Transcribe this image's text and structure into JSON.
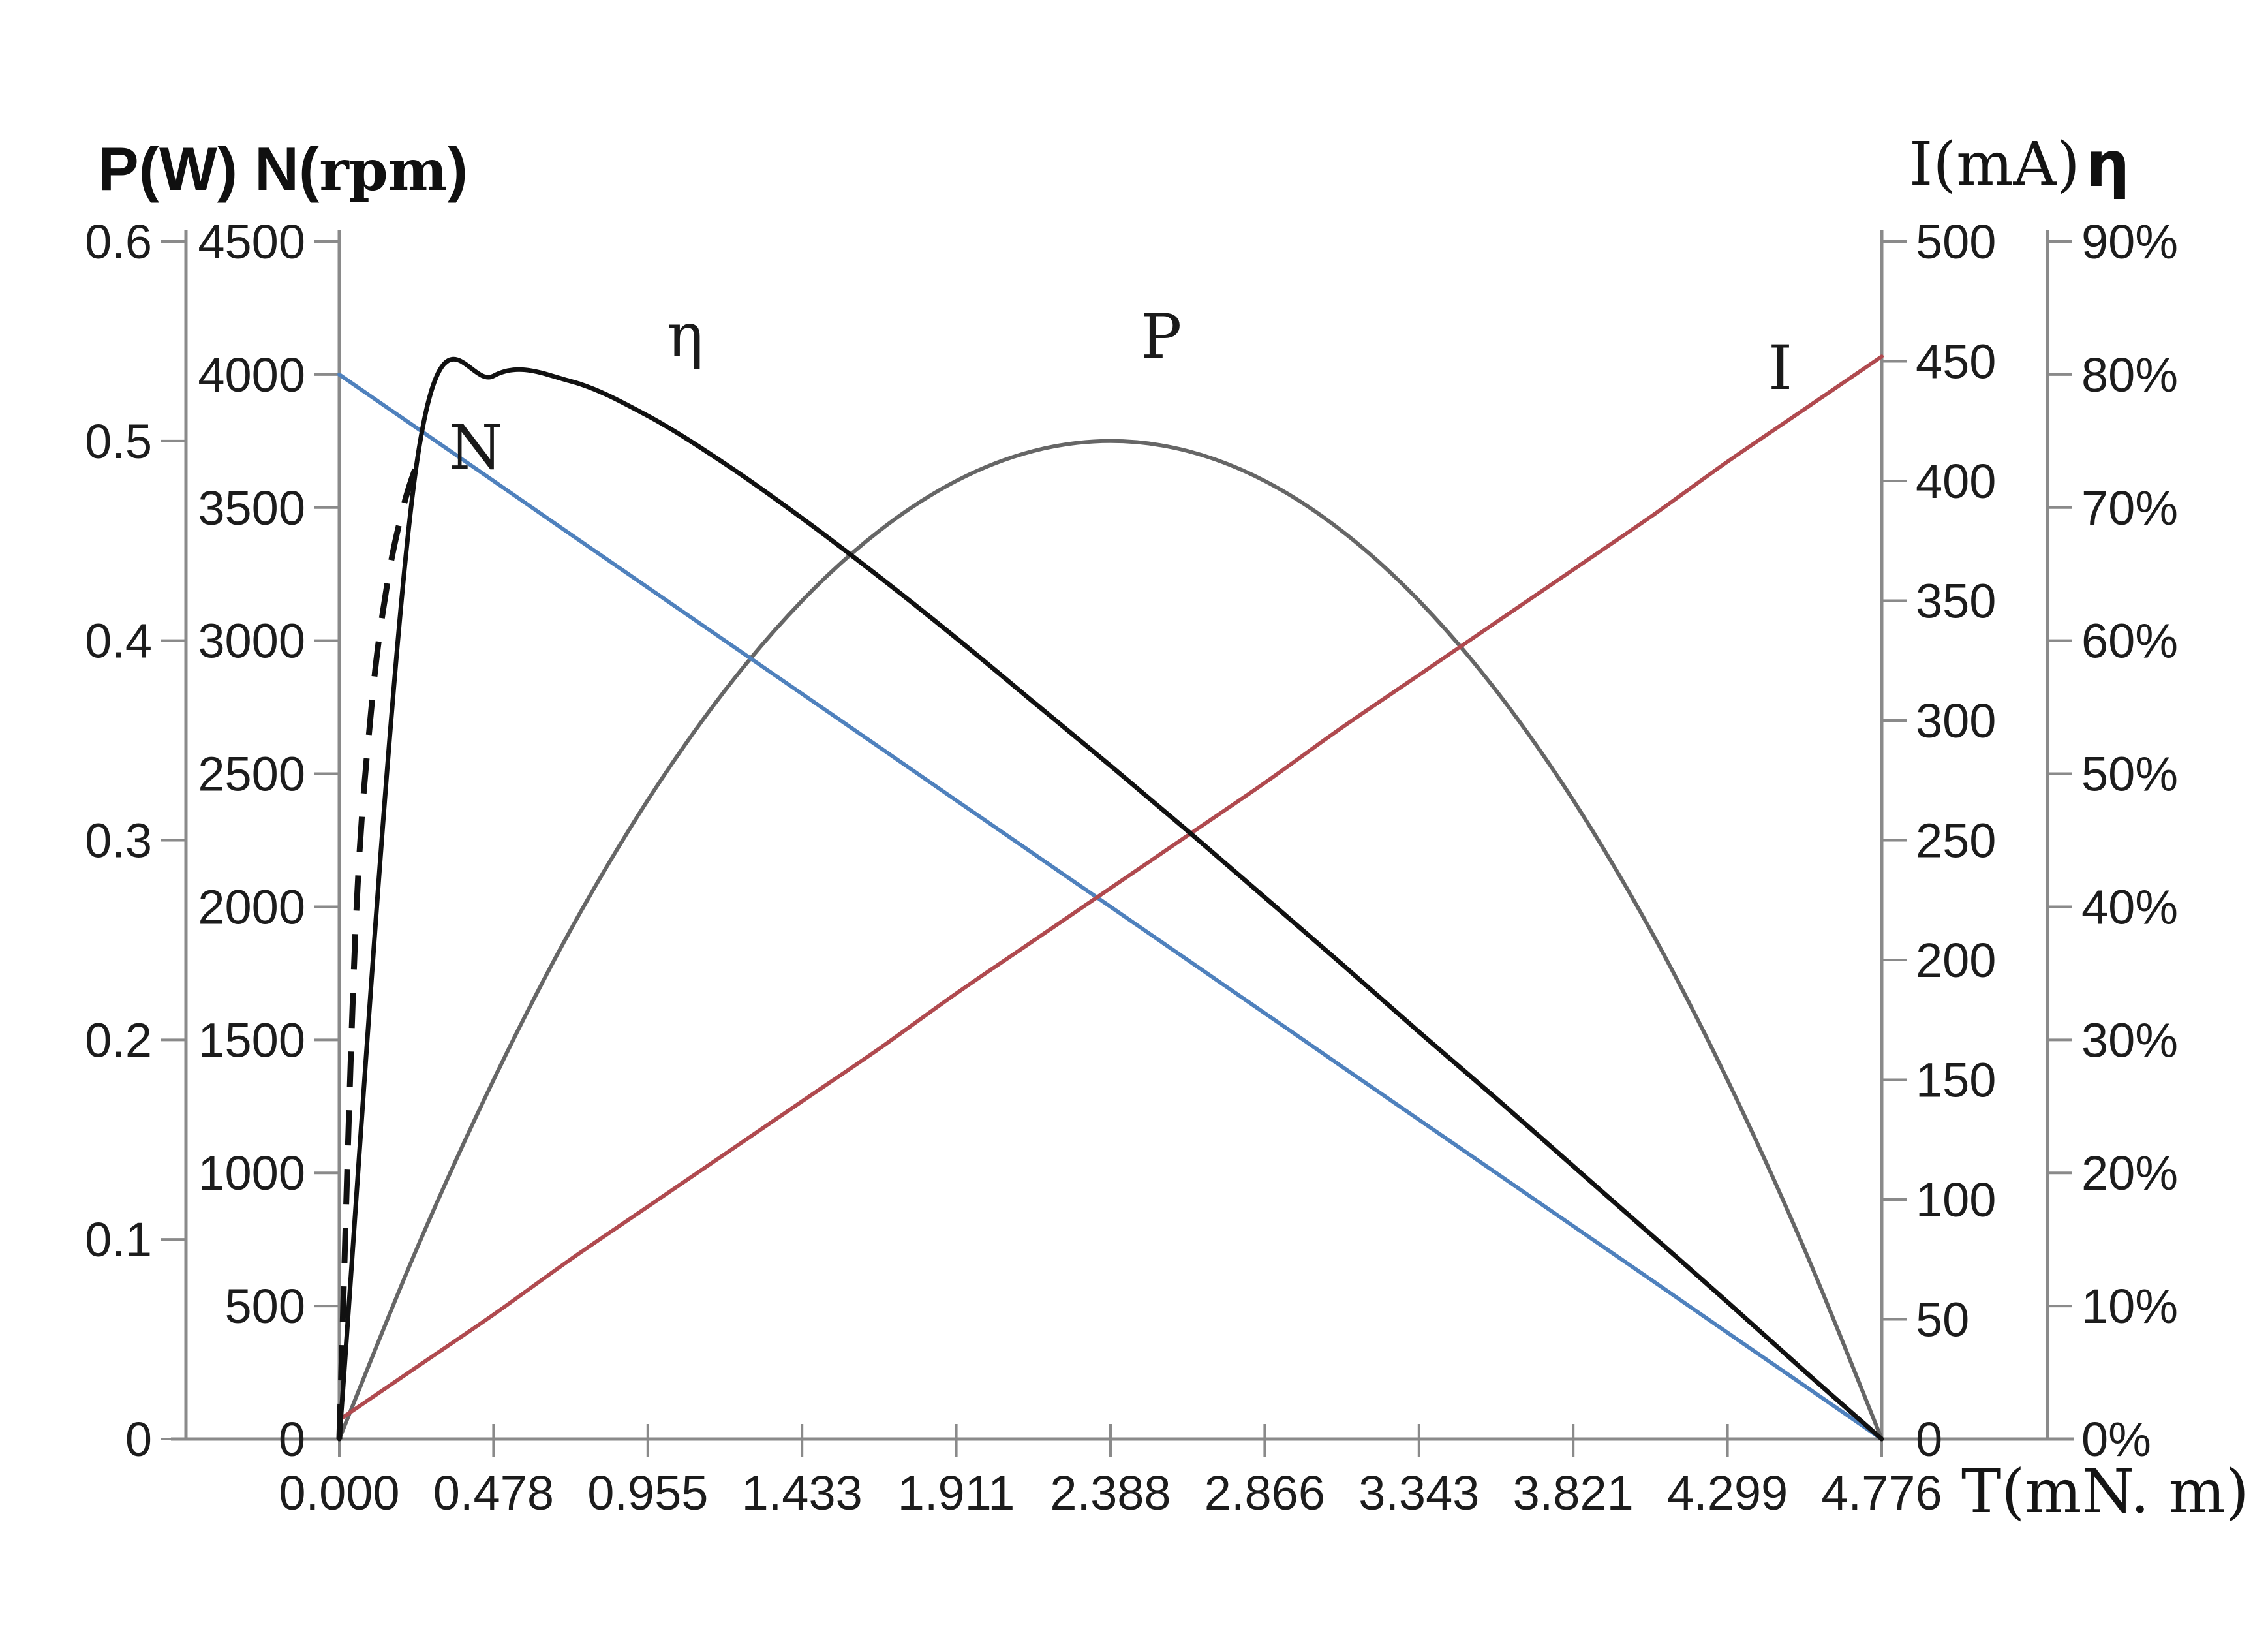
{
  "header": {
    "left_title_p": "P(W)",
    "left_title_n_prefix": "N(",
    "left_title_n_unit": "rpm",
    "left_title_n_suffix": ")",
    "right_title_i": "I(mA)",
    "right_title_eta": "η"
  },
  "curve_labels": {
    "eta": "η",
    "p": "P",
    "n": "N",
    "i": "I"
  },
  "palette": {
    "axis_line": "#8a8a8a",
    "tick_text": "#1c1c1c",
    "n_line": "#4f81bd",
    "i_line": "#b04a4f",
    "p_line": "#666666",
    "eta_line": "#111111",
    "background": "#ffffff"
  },
  "axes": {
    "x": {
      "title": "T(mN. m)",
      "min": 0,
      "max": 4.776,
      "tick_labels": [
        "0.000",
        "0.478",
        "0.955",
        "1.433",
        "1.911",
        "2.388",
        "2.866",
        "3.343",
        "3.821",
        "4.299",
        "4.776"
      ],
      "tick_values": [
        0,
        0.4776,
        0.9552,
        1.4328,
        1.9104,
        2.388,
        2.8656,
        3.3432,
        3.8208,
        4.2984,
        4.776
      ]
    },
    "vertical": [
      {
        "id": "p",
        "title": "P(W)",
        "unit": "W",
        "side": "left",
        "max": 0.6,
        "tick_labels": [
          "0.6",
          "0.5",
          "0.4",
          "0.3",
          "0.2",
          "0.1",
          "0"
        ],
        "tick_values": [
          0.6,
          0.5,
          0.4,
          0.3,
          0.2,
          0.1,
          0
        ]
      },
      {
        "id": "n",
        "title": "N(rpm)",
        "unit": "rpm",
        "side": "left",
        "max": 4500,
        "tick_labels": [
          "4500",
          "4000",
          "3500",
          "3000",
          "2500",
          "2000",
          "1500",
          "1000",
          "500",
          "0"
        ],
        "tick_values": [
          4500,
          4000,
          3500,
          3000,
          2500,
          2000,
          1500,
          1000,
          500,
          0
        ]
      },
      {
        "id": "i",
        "title": "I(mA)",
        "unit": "mA",
        "side": "right",
        "max": 500,
        "tick_labels": [
          "500",
          "450",
          "400",
          "350",
          "300",
          "250",
          "200",
          "150",
          "100",
          "50",
          "0"
        ],
        "tick_values": [
          500,
          450,
          400,
          350,
          300,
          250,
          200,
          150,
          100,
          50,
          0
        ]
      },
      {
        "id": "eta",
        "title": "η",
        "unit": "%",
        "side": "right",
        "max": 90,
        "tick_labels": [
          "90%",
          "80%",
          "70%",
          "60%",
          "50%",
          "40%",
          "30%",
          "20%",
          "10%",
          "0%"
        ],
        "tick_values": [
          90,
          80,
          70,
          60,
          50,
          40,
          30,
          20,
          10,
          0
        ]
      }
    ]
  },
  "chart_data": {
    "type": "line",
    "title": "Motor performance curves: speed N, output power P, current I and efficiency η versus torque T",
    "xlabel": "T(mN. m)",
    "x_range": [
      0,
      4.776
    ],
    "grid": false,
    "legend_position": "inline-curve-labels",
    "x": [
      0,
      0.239,
      0.478,
      0.716,
      0.955,
      1.194,
      1.433,
      1.672,
      1.91,
      2.149,
      2.388,
      2.627,
      2.866,
      3.104,
      3.343,
      3.582,
      3.821,
      4.06,
      4.298,
      4.537,
      4.776
    ],
    "series": [
      {
        "id": "p",
        "name": "P",
        "unit": "W",
        "axis": "p",
        "axis_max": 0.6,
        "color": "#666666",
        "line": "solid",
        "values": [
          0,
          0.095,
          0.18,
          0.255,
          0.32,
          0.375,
          0.42,
          0.455,
          0.48,
          0.495,
          0.5,
          0.495,
          0.48,
          0.455,
          0.42,
          0.375,
          0.32,
          0.255,
          0.18,
          0.095,
          0
        ]
      },
      {
        "id": "n",
        "name": "N",
        "unit": "rpm",
        "axis": "n",
        "axis_max": 4500,
        "color": "#4f81bd",
        "line": "solid",
        "values": [
          4000,
          3800,
          3600,
          3400,
          3200,
          3000,
          2800,
          2600,
          2400,
          2200,
          2000,
          1800,
          1600,
          1400,
          1200,
          1000,
          800,
          600,
          400,
          200,
          0
        ]
      },
      {
        "id": "i",
        "name": "I",
        "unit": "mA",
        "axis": "i",
        "axis_max": 500,
        "color": "#b04a4f",
        "line": "solid",
        "values": [
          8,
          30,
          52,
          75,
          97,
          119,
          141,
          163,
          186,
          208,
          230,
          252,
          274,
          297,
          319,
          341,
          363,
          385,
          408,
          430,
          452
        ]
      },
      {
        "id": "eta",
        "name": "η",
        "unit": "%",
        "axis": "eta",
        "axis_max": 90,
        "color": "#111111",
        "line": "solid-with-dashed-lead",
        "values": [
          0,
          73.2,
          79.9,
          79.5,
          76.9,
          73.3,
          69.2,
          64.8,
          60.2,
          55.4,
          50.6,
          45.7,
          40.7,
          35.7,
          30.6,
          25.6,
          20.5,
          15.4,
          10.3,
          5.1,
          0
        ],
        "lead_x": [
          0,
          0.05,
          0.1,
          0.15,
          0.2,
          0.239
        ],
        "lead_values": [
          0,
          38.1,
          55.1,
          64.5,
          70.2,
          73.2
        ],
        "dashed_below_x": 0.239
      }
    ]
  }
}
